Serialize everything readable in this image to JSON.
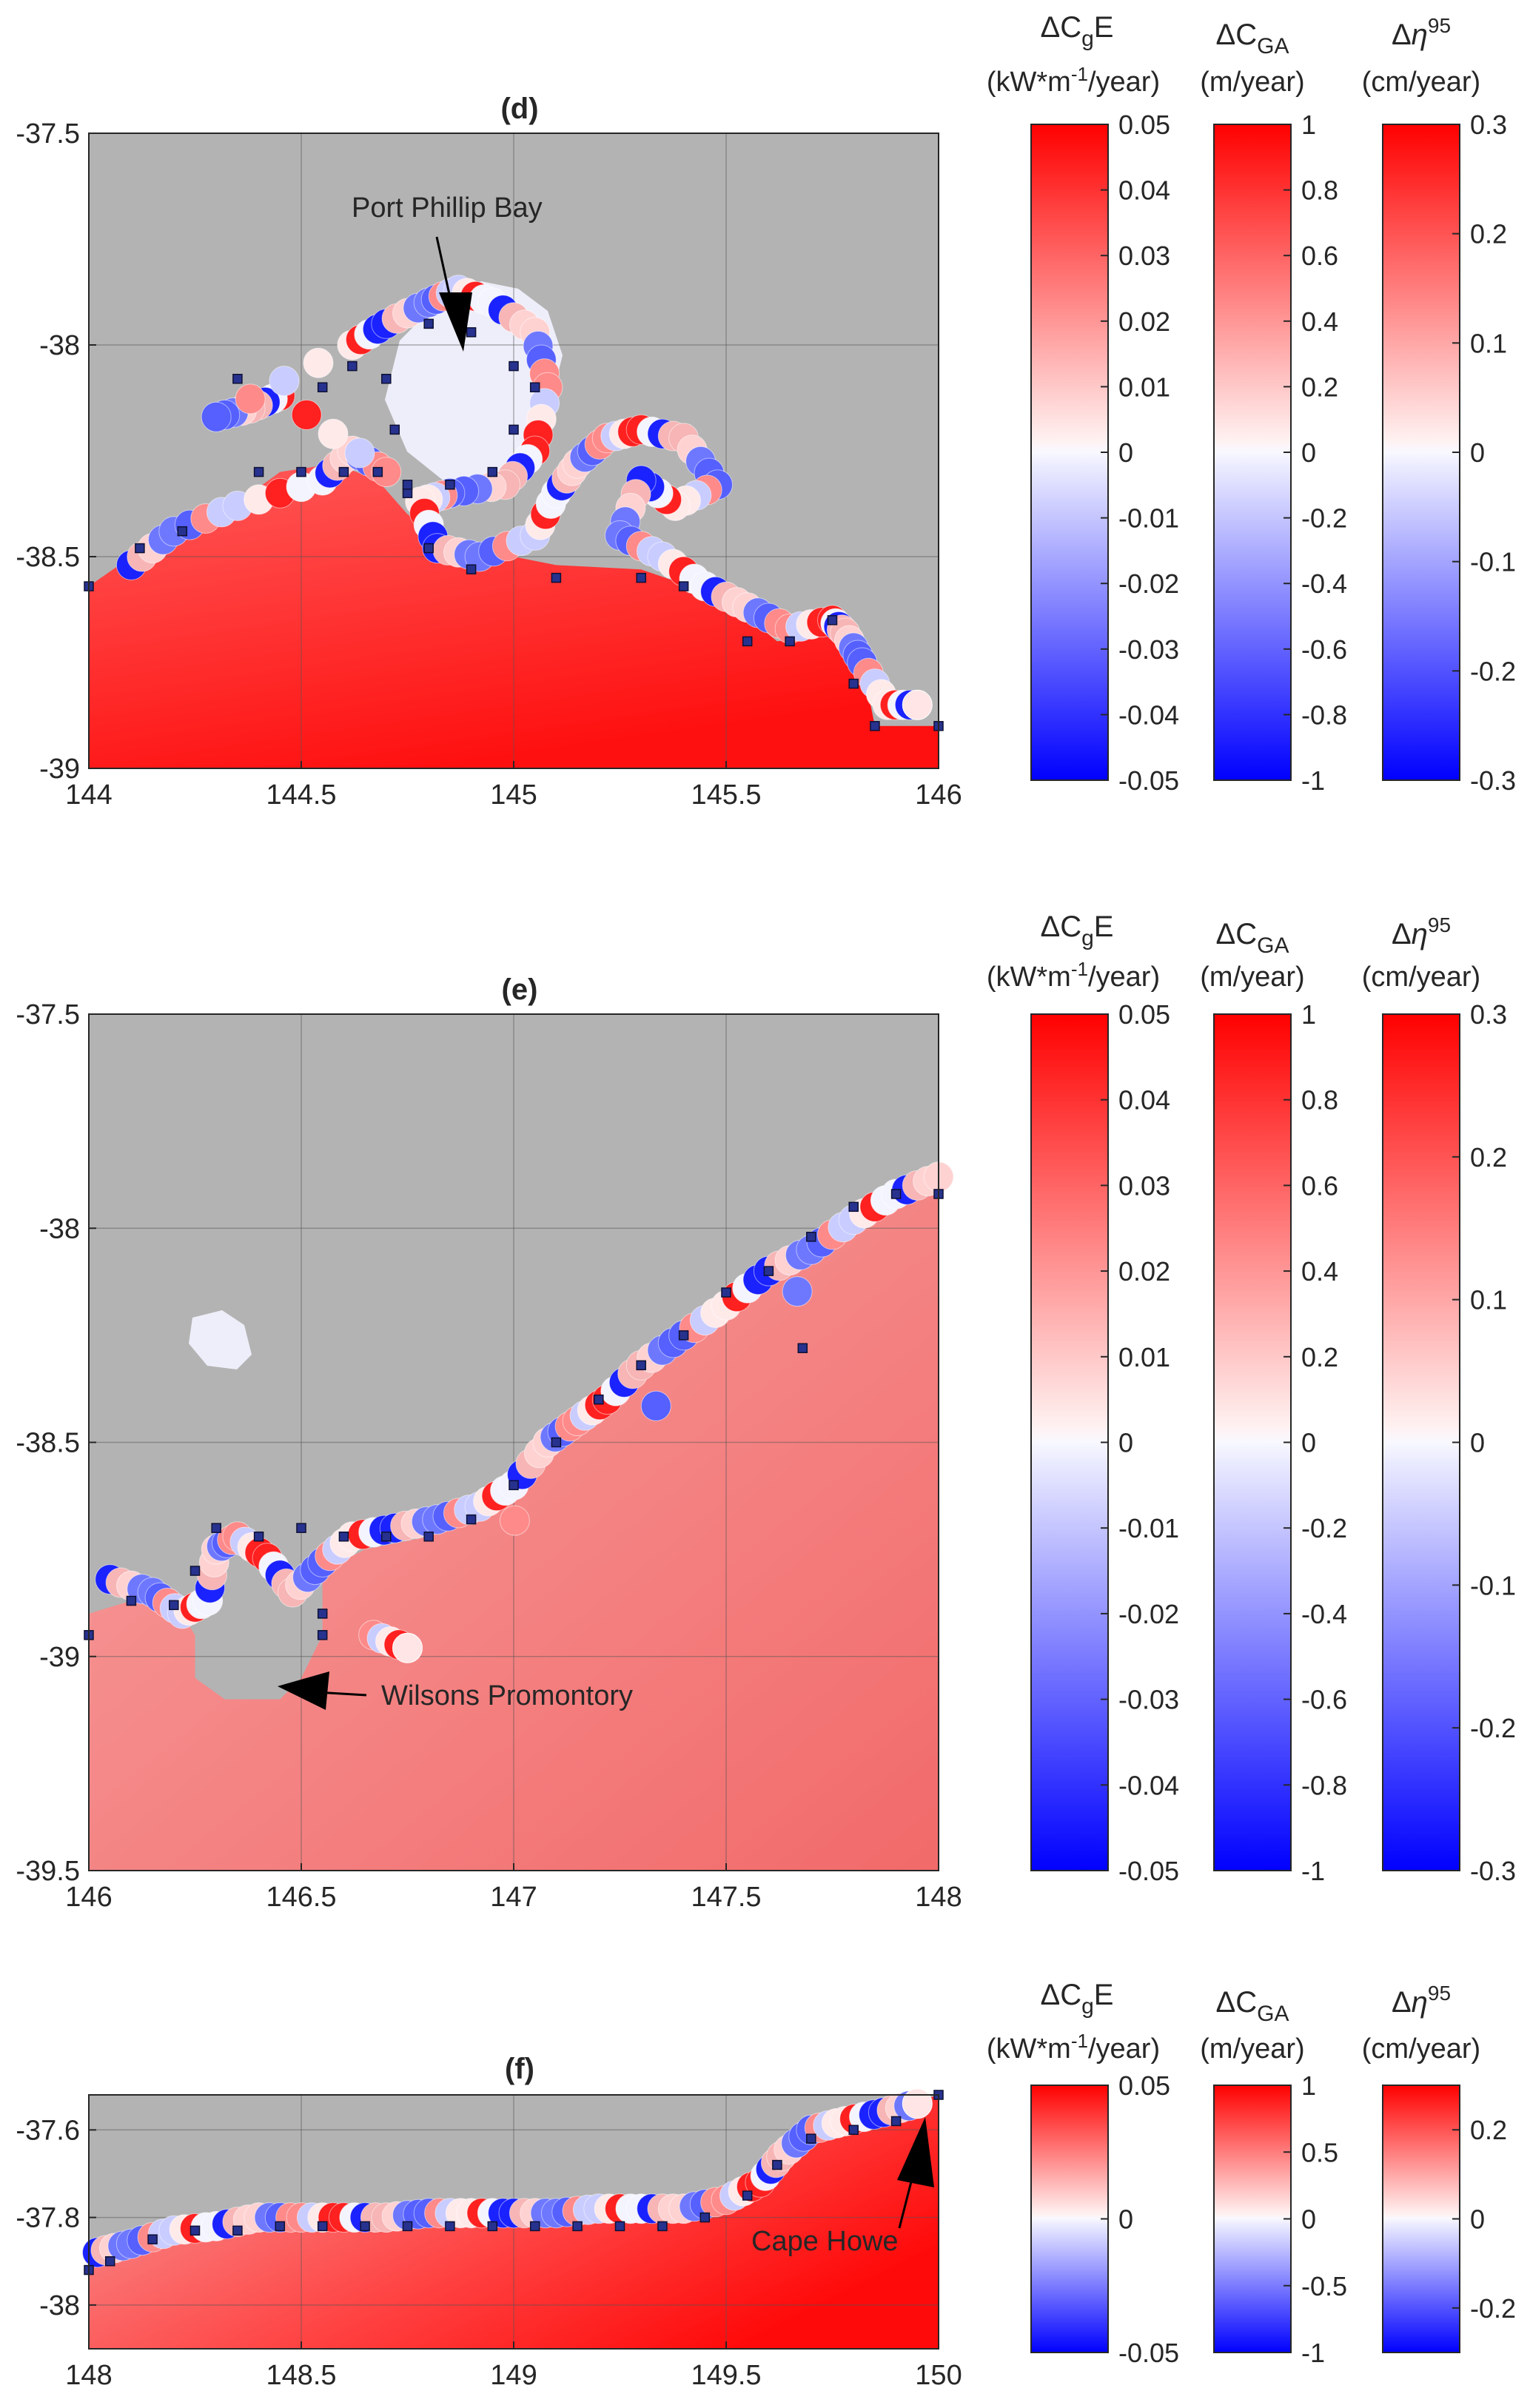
{
  "chart_data": [
    {
      "type": "map",
      "panel": "(d)",
      "xlim": [
        144,
        146
      ],
      "ylim": [
        -39,
        -37.5
      ],
      "xticks": [
        "144",
        "144.5",
        "145",
        "145.5",
        "146"
      ],
      "xtick_values": [
        144,
        144.5,
        145,
        145.5,
        146
      ],
      "yticks": [
        "-37.5",
        "-38",
        "-38.5",
        "-39"
      ],
      "ytick_values": [
        -37.5,
        -38,
        -38.5,
        -39
      ],
      "annotations": [
        {
          "text": "Port Phillip Bay",
          "x": 144.93,
          "y": -37.89,
          "arrow_to": [
            144.88,
            -38.02
          ]
        }
      ],
      "coast": [
        [
          144.0,
          -38.57
        ],
        [
          144.1,
          -38.5
        ],
        [
          144.3,
          -38.41
        ],
        [
          144.45,
          -38.3
        ],
        [
          144.58,
          -38.28
        ],
        [
          144.68,
          -38.32
        ],
        [
          144.75,
          -38.4
        ],
        [
          144.85,
          -38.47
        ],
        [
          145.0,
          -38.5
        ],
        [
          145.1,
          -38.52
        ],
        [
          145.3,
          -38.53
        ],
        [
          145.5,
          -38.6
        ],
        [
          145.62,
          -38.7
        ],
        [
          145.75,
          -38.68
        ],
        [
          145.82,
          -38.75
        ],
        [
          145.85,
          -38.9
        ],
        [
          146.0,
          -38.9
        ]
      ],
      "coastal_circles": [
        [
          144.1,
          -38.52
        ],
        [
          144.2,
          -38.44
        ],
        [
          144.35,
          -38.38
        ],
        [
          144.55,
          -38.32
        ],
        [
          144.62,
          -38.25
        ],
        [
          144.7,
          -38.3
        ],
        [
          144.45,
          -38.12
        ],
        [
          144.38,
          -38.15
        ],
        [
          144.3,
          -38.17
        ],
        [
          144.62,
          -38.0
        ],
        [
          144.7,
          -37.95
        ],
        [
          144.8,
          -37.9
        ],
        [
          144.87,
          -37.87
        ],
        [
          144.95,
          -37.9
        ],
        [
          145.05,
          -37.97
        ],
        [
          145.08,
          -38.1
        ],
        [
          145.05,
          -38.25
        ],
        [
          144.98,
          -38.33
        ],
        [
          144.85,
          -38.35
        ],
        [
          144.78,
          -38.37
        ],
        [
          144.82,
          -38.48
        ],
        [
          144.92,
          -38.5
        ],
        [
          145.05,
          -38.45
        ],
        [
          145.1,
          -38.35
        ],
        [
          145.15,
          -38.28
        ],
        [
          145.22,
          -38.22
        ],
        [
          145.3,
          -38.2
        ],
        [
          145.4,
          -38.22
        ],
        [
          145.48,
          -38.33
        ],
        [
          145.38,
          -38.38
        ],
        [
          145.3,
          -38.32
        ],
        [
          145.25,
          -38.45
        ],
        [
          145.35,
          -38.5
        ],
        [
          145.45,
          -38.57
        ],
        [
          145.55,
          -38.62
        ],
        [
          145.65,
          -38.67
        ],
        [
          145.75,
          -38.65
        ],
        [
          145.78,
          -38.68
        ],
        [
          145.82,
          -38.75
        ],
        [
          145.88,
          -38.85
        ],
        [
          145.95,
          -38.85
        ]
      ],
      "sites": [
        [
          144.0,
          -38.57
        ],
        [
          144.12,
          -38.48
        ],
        [
          144.22,
          -38.44
        ],
        [
          144.4,
          -38.3
        ],
        [
          144.5,
          -38.3
        ],
        [
          144.6,
          -38.3
        ],
        [
          144.68,
          -38.3
        ],
        [
          144.75,
          -38.35
        ],
        [
          144.8,
          -38.48
        ],
        [
          144.9,
          -38.53
        ],
        [
          145.1,
          -38.55
        ],
        [
          145.3,
          -38.55
        ],
        [
          145.4,
          -38.57
        ],
        [
          145.55,
          -38.7
        ],
        [
          145.65,
          -38.7
        ],
        [
          145.75,
          -38.65
        ],
        [
          145.8,
          -38.8
        ],
        [
          145.85,
          -38.9
        ],
        [
          146.0,
          -38.9
        ],
        [
          144.62,
          -38.05
        ],
        [
          144.7,
          -38.08
        ],
        [
          144.8,
          -37.95
        ],
        [
          144.9,
          -37.97
        ],
        [
          145.0,
          -38.05
        ],
        [
          145.05,
          -38.1
        ],
        [
          145.0,
          -38.2
        ],
        [
          144.95,
          -38.3
        ],
        [
          144.85,
          -38.33
        ],
        [
          144.75,
          -38.33
        ],
        [
          144.72,
          -38.2
        ],
        [
          144.55,
          -38.1
        ],
        [
          144.35,
          -38.08
        ]
      ]
    },
    {
      "type": "map",
      "panel": "(e)",
      "xlim": [
        146,
        148
      ],
      "ylim": [
        -39.5,
        -37.5
      ],
      "xticks": [
        "146",
        "146.5",
        "147",
        "147.5",
        "148"
      ],
      "xtick_values": [
        146,
        146.5,
        147,
        147.5,
        148
      ],
      "yticks": [
        "-37.5",
        "-38",
        "-38.5",
        "-39",
        "-39.5"
      ],
      "ytick_values": [
        -37.5,
        -38,
        -38.5,
        -39,
        -39.5
      ],
      "annotations": [
        {
          "text": "Wilsons Promontory",
          "x": 146.65,
          "y": -39.11,
          "arrow_to": [
            146.45,
            -39.08
          ]
        }
      ],
      "coast": [
        [
          146.0,
          -38.9
        ],
        [
          146.1,
          -38.87
        ],
        [
          146.2,
          -38.87
        ],
        [
          146.25,
          -38.95
        ],
        [
          146.25,
          -39.05
        ],
        [
          146.32,
          -39.1
        ],
        [
          146.45,
          -39.1
        ],
        [
          146.5,
          -39.05
        ],
        [
          146.55,
          -38.95
        ],
        [
          146.55,
          -38.8
        ],
        [
          146.65,
          -38.75
        ],
        [
          146.8,
          -38.72
        ],
        [
          146.95,
          -38.65
        ],
        [
          147.1,
          -38.5
        ],
        [
          147.3,
          -38.3
        ],
        [
          147.5,
          -38.15
        ],
        [
          147.7,
          -38.02
        ],
        [
          147.9,
          -37.92
        ],
        [
          148.0,
          -37.9
        ]
      ],
      "coastal_circles": [
        [
          146.05,
          -38.82
        ],
        [
          146.15,
          -38.85
        ],
        [
          146.22,
          -38.9
        ],
        [
          146.28,
          -38.87
        ],
        [
          146.3,
          -38.75
        ],
        [
          146.35,
          -38.72
        ],
        [
          146.42,
          -38.77
        ],
        [
          146.48,
          -38.85
        ],
        [
          146.55,
          -38.78
        ],
        [
          146.62,
          -38.72
        ],
        [
          146.72,
          -38.7
        ],
        [
          146.82,
          -38.68
        ],
        [
          146.92,
          -38.65
        ],
        [
          147.0,
          -38.6
        ],
        [
          147.08,
          -38.5
        ],
        [
          147.15,
          -38.45
        ],
        [
          147.22,
          -38.4
        ],
        [
          147.3,
          -38.32
        ],
        [
          147.4,
          -38.25
        ],
        [
          147.5,
          -38.18
        ],
        [
          147.6,
          -38.1
        ],
        [
          147.7,
          -38.05
        ],
        [
          147.8,
          -37.98
        ],
        [
          147.9,
          -37.92
        ],
        [
          148.0,
          -37.88
        ],
        [
          146.67,
          -38.95
        ],
        [
          146.75,
          -38.98
        ]
      ],
      "sites": [
        [
          146.0,
          -38.95
        ],
        [
          146.1,
          -38.87
        ],
        [
          146.2,
          -38.88
        ],
        [
          146.25,
          -38.8
        ],
        [
          146.3,
          -38.7
        ],
        [
          146.4,
          -38.72
        ],
        [
          146.5,
          -38.7
        ],
        [
          146.6,
          -38.72
        ],
        [
          146.7,
          -38.72
        ],
        [
          146.8,
          -38.72
        ],
        [
          146.9,
          -38.68
        ],
        [
          147.0,
          -38.6
        ],
        [
          147.1,
          -38.5
        ],
        [
          147.2,
          -38.4
        ],
        [
          147.3,
          -38.32
        ],
        [
          147.4,
          -38.25
        ],
        [
          147.5,
          -38.15
        ],
        [
          147.6,
          -38.1
        ],
        [
          147.7,
          -38.02
        ],
        [
          147.8,
          -37.95
        ],
        [
          147.9,
          -37.92
        ],
        [
          148.0,
          -37.92
        ],
        [
          147.68,
          -38.28
        ],
        [
          146.55,
          -38.9
        ],
        [
          146.55,
          -38.95
        ]
      ]
    },
    {
      "type": "map",
      "panel": "(f)",
      "xlim": [
        148,
        150
      ],
      "ylim": [
        -38.1,
        -37.52
      ],
      "xticks": [
        "148",
        "148.5",
        "149",
        "149.5",
        "150"
      ],
      "xtick_values": [
        148,
        148.5,
        149,
        149.5,
        150
      ],
      "yticks": [
        "-37.6",
        "-37.8",
        "-38"
      ],
      "ytick_values": [
        -37.6,
        -37.8,
        -38
      ],
      "annotations": [
        {
          "text": "Cape Howe",
          "x": 149.75,
          "y": -37.84,
          "arrow_to": [
            149.96,
            -37.55
          ]
        }
      ],
      "coast": [
        [
          148.0,
          -37.9
        ],
        [
          148.1,
          -37.87
        ],
        [
          148.2,
          -37.84
        ],
        [
          148.3,
          -37.82
        ],
        [
          148.4,
          -37.8
        ],
        [
          148.5,
          -37.8
        ],
        [
          148.7,
          -37.8
        ],
        [
          148.9,
          -37.79
        ],
        [
          149.1,
          -37.79
        ],
        [
          149.3,
          -37.79
        ],
        [
          149.5,
          -37.76
        ],
        [
          149.6,
          -37.72
        ],
        [
          149.65,
          -37.65
        ],
        [
          149.72,
          -37.6
        ],
        [
          149.8,
          -37.57
        ],
        [
          149.9,
          -37.55
        ],
        [
          150.0,
          -37.52
        ]
      ],
      "coastal_circles": [
        [
          148.02,
          -37.88
        ],
        [
          148.1,
          -37.86
        ],
        [
          148.2,
          -37.83
        ],
        [
          148.3,
          -37.82
        ],
        [
          148.4,
          -37.8
        ],
        [
          148.5,
          -37.8
        ],
        [
          148.6,
          -37.8
        ],
        [
          148.7,
          -37.8
        ],
        [
          148.8,
          -37.79
        ],
        [
          148.9,
          -37.79
        ],
        [
          149.0,
          -37.79
        ],
        [
          149.1,
          -37.79
        ],
        [
          149.2,
          -37.78
        ],
        [
          149.3,
          -37.78
        ],
        [
          149.4,
          -37.78
        ],
        [
          149.5,
          -37.76
        ],
        [
          149.58,
          -37.72
        ],
        [
          149.63,
          -37.66
        ],
        [
          149.7,
          -37.6
        ],
        [
          149.78,
          -37.58
        ],
        [
          149.87,
          -37.56
        ],
        [
          149.95,
          -37.54
        ]
      ],
      "sites": [
        [
          148.0,
          -37.92
        ],
        [
          148.05,
          -37.9
        ],
        [
          148.15,
          -37.85
        ],
        [
          148.25,
          -37.83
        ],
        [
          148.35,
          -37.83
        ],
        [
          148.45,
          -37.82
        ],
        [
          148.55,
          -37.82
        ],
        [
          148.65,
          -37.82
        ],
        [
          148.75,
          -37.82
        ],
        [
          148.85,
          -37.82
        ],
        [
          148.95,
          -37.82
        ],
        [
          149.05,
          -37.82
        ],
        [
          149.15,
          -37.82
        ],
        [
          149.25,
          -37.82
        ],
        [
          149.35,
          -37.82
        ],
        [
          149.45,
          -37.8
        ],
        [
          149.55,
          -37.75
        ],
        [
          149.62,
          -37.68
        ],
        [
          149.7,
          -37.62
        ],
        [
          149.8,
          -37.6
        ],
        [
          149.9,
          -37.58
        ],
        [
          150.0,
          -37.52
        ]
      ]
    }
  ],
  "colorbars": [
    {
      "title_lines": [
        "ΔCgE",
        "(kW*m⁻¹/year)"
      ],
      "rows": [
        {
          "ticks": [
            "0.05",
            "0.04",
            "0.03",
            "0.02",
            "0.01",
            "0",
            "-0.01",
            "-0.02",
            "-0.03",
            "-0.04",
            "-0.05"
          ],
          "values": [
            0.05,
            0.04,
            0.03,
            0.02,
            0.01,
            0,
            -0.01,
            -0.02,
            -0.03,
            -0.04,
            -0.05
          ],
          "range": [
            -0.05,
            0.05
          ]
        },
        {
          "ticks": [
            "0.05",
            "0.04",
            "0.03",
            "0.02",
            "0.01",
            "0",
            "-0.01",
            "-0.02",
            "-0.03",
            "-0.04",
            "-0.05"
          ],
          "values": [
            0.05,
            0.04,
            0.03,
            0.02,
            0.01,
            0,
            -0.01,
            -0.02,
            -0.03,
            -0.04,
            -0.05
          ],
          "range": [
            -0.05,
            0.05
          ]
        },
        {
          "ticks": [
            "0.05",
            "0",
            "-0.05"
          ],
          "values": [
            0.05,
            0,
            -0.05
          ],
          "range": [
            -0.05,
            0.05
          ]
        }
      ]
    },
    {
      "title_lines": [
        "ΔCGA",
        "(m/year)"
      ],
      "rows": [
        {
          "ticks": [
            "1",
            "0.8",
            "0.6",
            "0.4",
            "0.2",
            "0",
            "-0.2",
            "-0.4",
            "-0.6",
            "-0.8",
            "-1"
          ],
          "values": [
            1,
            0.8,
            0.6,
            0.4,
            0.2,
            0,
            -0.2,
            -0.4,
            -0.6,
            -0.8,
            -1
          ],
          "range": [
            -1,
            1
          ]
        },
        {
          "ticks": [
            "1",
            "0.8",
            "0.6",
            "0.4",
            "0.2",
            "0",
            "-0.2",
            "-0.4",
            "-0.6",
            "-0.8",
            "-1"
          ],
          "values": [
            1,
            0.8,
            0.6,
            0.4,
            0.2,
            0,
            -0.2,
            -0.4,
            -0.6,
            -0.8,
            -1
          ],
          "range": [
            -1,
            1
          ]
        },
        {
          "ticks": [
            "1",
            "0.5",
            "0",
            "-0.5",
            "-1"
          ],
          "values": [
            1,
            0.5,
            0,
            -0.5,
            -1
          ],
          "range": [
            -1,
            1
          ]
        }
      ]
    },
    {
      "title_lines": [
        "Δη95",
        "(cm/year)"
      ],
      "rows": [
        {
          "ticks": [
            "0.3",
            "0.2",
            "0.1",
            "0",
            "-0.1",
            "-0.2",
            "-0.3"
          ],
          "values": [
            0.3,
            0.2,
            0.1,
            0,
            -0.1,
            -0.2,
            -0.3
          ],
          "range": [
            -0.3,
            0.3
          ]
        },
        {
          "ticks": [
            "0.3",
            "0.2",
            "0.1",
            "0",
            "-0.1",
            "-0.2",
            "-0.3"
          ],
          "values": [
            0.3,
            0.2,
            0.1,
            0,
            -0.1,
            -0.2,
            -0.3
          ],
          "range": [
            -0.3,
            0.3
          ]
        },
        {
          "ticks": [
            "0.2",
            "0",
            "-0.2"
          ],
          "values": [
            0.2,
            0,
            -0.2
          ],
          "range": [
            -0.3,
            0.3
          ]
        }
      ]
    }
  ],
  "colorbar_titles": {
    "cge_delta": "Δ",
    "cge_c": "C",
    "cge_sub": "g",
    "cge_e": "E",
    "cge_unit_pre": "(kW*m",
    "cge_unit_sup": "-1",
    "cge_unit_post": "/year)",
    "cga_delta": "Δ",
    "cga_c": "C",
    "cga_sub": "GA",
    "cga_unit": "(m/year)",
    "eta_delta": "Δ",
    "eta_sym": "η",
    "eta_sup": "95",
    "eta_unit": "(cm/year)"
  },
  "colors": {
    "land": "#b3b3b3",
    "sea_red": "#ff2a2a",
    "sea_pink": "#f48a8a",
    "site": "#27328f",
    "blue": "#1f2cff",
    "red": "#ff1a1a",
    "neutral": "#f2f2ff"
  }
}
